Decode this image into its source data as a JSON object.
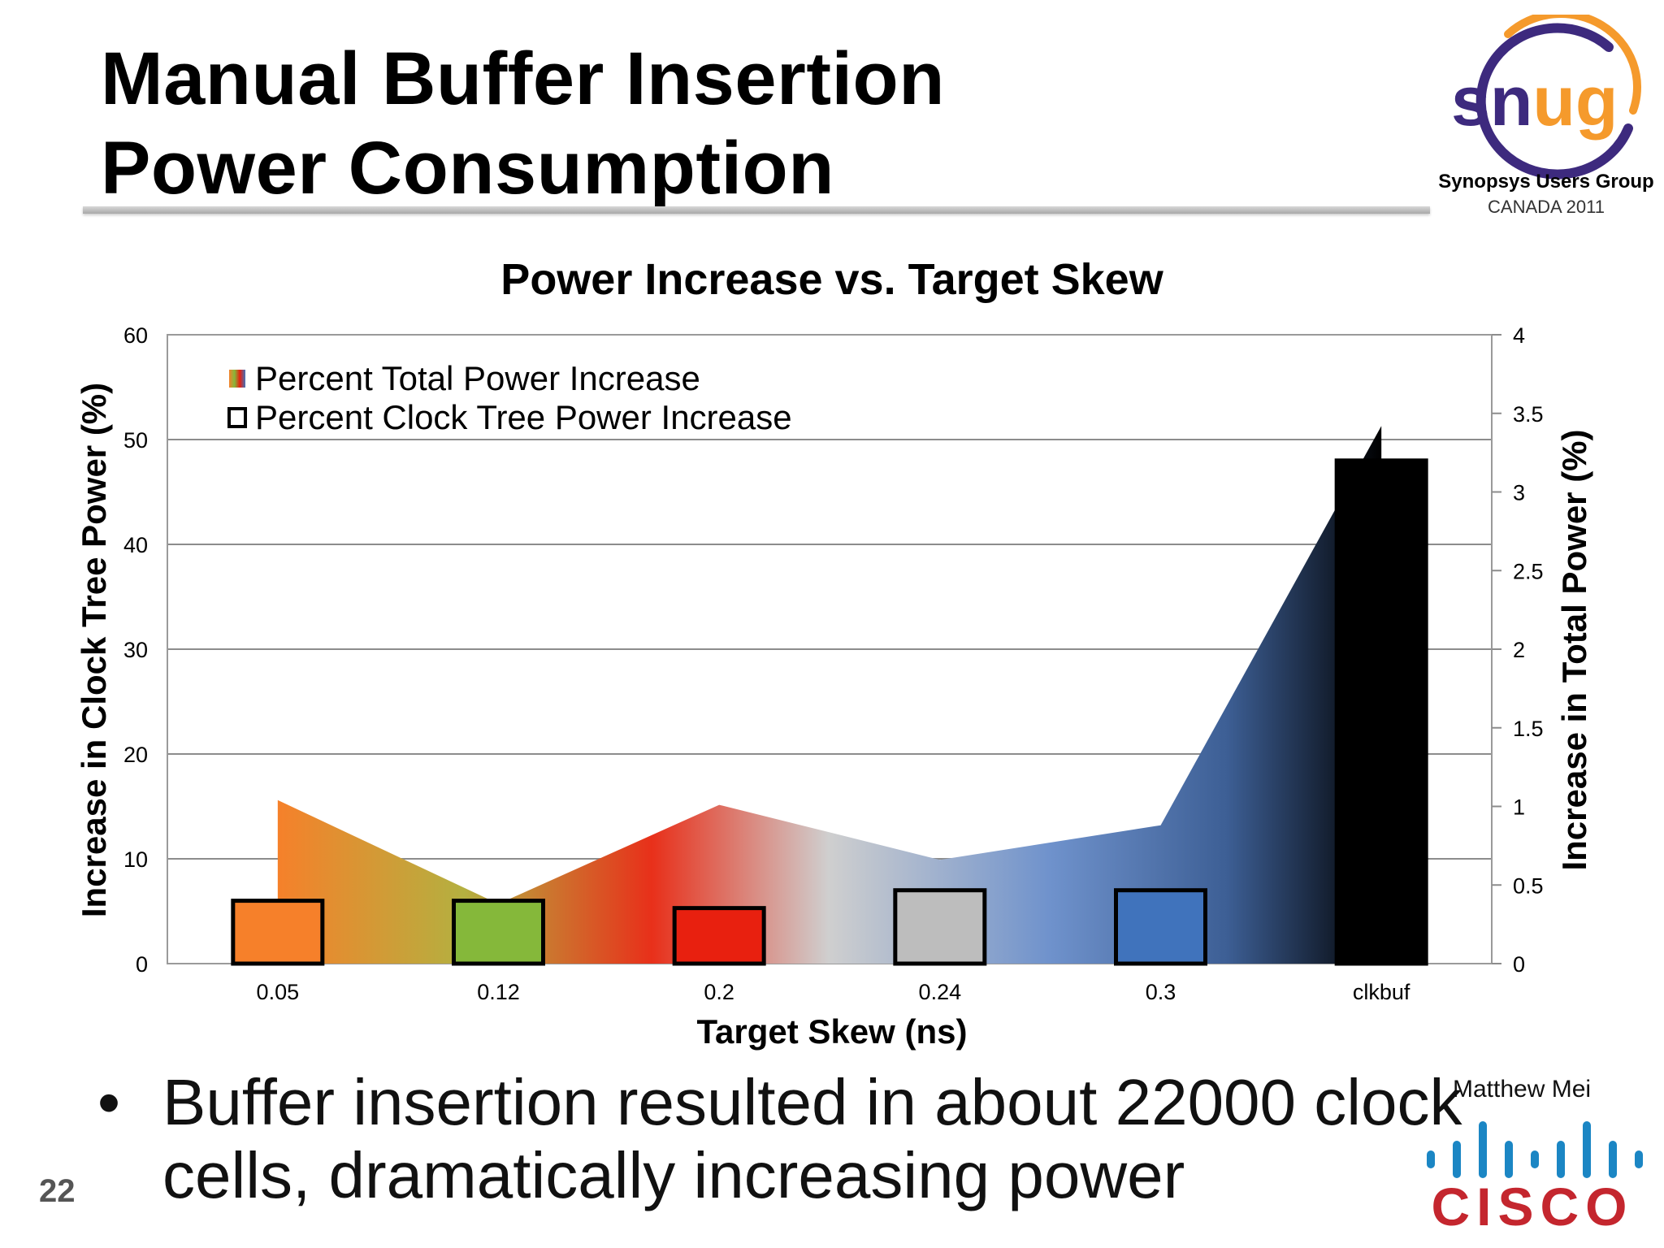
{
  "slide": {
    "title_line1": "Manual Buffer Insertion",
    "title_line2": "Power Consumption",
    "page_number": "22",
    "author": "Matthew Mei"
  },
  "snug_logo": {
    "wordmark": "snug",
    "tagline": "Synopsys Users Group",
    "subtitle": "CANADA 2011"
  },
  "cisco_logo": {
    "wordmark": "CISCO"
  },
  "bullet": {
    "dot": "•",
    "text": "Buffer insertion resulted in about 22000 clock cells, dramatically increasing power"
  },
  "colors": {
    "orange": "#f6802a",
    "green": "#85b83a",
    "red": "#e8200f",
    "gray": "#bdbdbd",
    "blue": "#4073bc",
    "black": "#000000",
    "snug_purple": "#3d2a7e",
    "snug_orange": "#f59a2c",
    "cisco_red": "#c4262e",
    "cisco_blue": "#1b86c4"
  },
  "chart_data": {
    "type": "bar",
    "title": "Power Increase vs. Target Skew",
    "xlabel": "Target Skew (ns)",
    "ylabel": "Increase in Clock Tree Power (%)",
    "y2label": "Increase in Total Power (%)",
    "categories": [
      "0.05",
      "0.12",
      "0.2",
      "0.24",
      "0.3",
      "clkbuf"
    ],
    "ylim": [
      0,
      60
    ],
    "y2lim": [
      0,
      4
    ],
    "yticks": [
      "0",
      "10",
      "20",
      "30",
      "40",
      "50",
      "60"
    ],
    "y2ticks": [
      "0",
      "0.5",
      "1",
      "1.5",
      "2",
      "2.5",
      "3",
      "3.5",
      "4"
    ],
    "grid": true,
    "legend_position": "top-left",
    "series": [
      {
        "name": "Percent Total Power Increase",
        "type": "area",
        "axis": "right",
        "values": [
          1.04,
          0.38,
          1.01,
          0.66,
          0.88,
          3.42
        ]
      },
      {
        "name": "Percent Clock Tree Power Increase",
        "type": "bar",
        "axis": "left",
        "values": [
          6,
          6,
          5.3,
          7,
          7,
          48
        ],
        "colors": [
          "#f6802a",
          "#85b83a",
          "#e8200f",
          "#bdbdbd",
          "#4073bc",
          "#000000"
        ]
      }
    ]
  }
}
